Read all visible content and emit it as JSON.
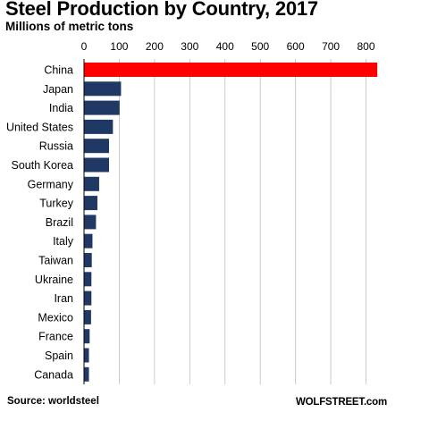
{
  "chart_data": {
    "type": "bar",
    "orientation": "horizontal",
    "title": "Steel Production by Country, 2017",
    "subtitle": "Millions of metric tons",
    "categories": [
      "China",
      "Japan",
      "India",
      "United States",
      "Russia",
      "South Korea",
      "Germany",
      "Turkey",
      "Brazil",
      "Italy",
      "Taiwan",
      "Ukraine",
      "Iran",
      "Mexico",
      "France",
      "Spain",
      "Canada"
    ],
    "values": [
      832,
      105,
      101,
      82,
      71,
      71,
      43,
      38,
      34,
      24,
      22,
      21,
      21,
      20,
      16,
      14,
      14
    ],
    "xlim": [
      0,
      850
    ],
    "x_ticks": [
      0,
      100,
      200,
      300,
      400,
      500,
      600,
      700,
      800
    ],
    "x_tick_labels": [
      "0",
      "100",
      "200",
      "300",
      "400",
      "500",
      "600",
      "700",
      "800"
    ],
    "x_axis_position": "top",
    "grid": "vertical",
    "colors": {
      "highlight": "#ff0000",
      "bar": "#1f3864",
      "grid": "#bfbfbf",
      "highlight_category": "China"
    }
  },
  "source": "Source: worldsteel",
  "credit": "WOLFSTREET.com"
}
